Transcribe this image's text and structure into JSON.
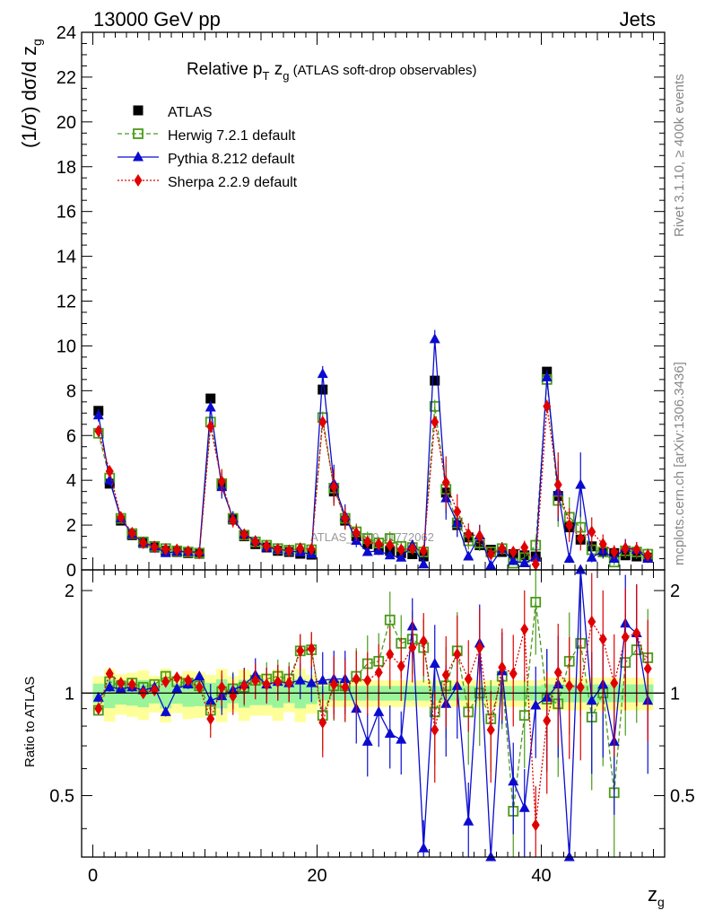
{
  "header": {
    "left": "13000 GeV pp",
    "right": "Jets"
  },
  "side_labels": {
    "rivet": "Rivet 3.1.10, ≥ 400k events",
    "mcplots": "mcplots.cern.ch [arXiv:1306.3436]"
  },
  "watermark": "ATLAS_2019_I1772062",
  "chart_data": {
    "type": "scatter",
    "title": "Relative pT zg (ATLAS soft-drop observables)",
    "title_parts": {
      "a": "Relative p",
      "sub1": "T",
      "b": " z",
      "sub2": "g",
      "c": " (ATLAS soft-drop observables)"
    },
    "xlabel": "zg",
    "xlabel_parts": {
      "main": "z",
      "sub": "g"
    },
    "ylabel": "(1/σ) dσ/d zg",
    "ylabel_parts": {
      "main": "(1/σ) dσ/d z",
      "sub": "g"
    },
    "ratio_ylabel": "Ratio to ATLAS",
    "xlim": [
      -1,
      51
    ],
    "ylim": [
      0,
      24
    ],
    "ratio_ylim": [
      0.33,
      2.3
    ],
    "xticks": [
      "0",
      "20",
      "40"
    ],
    "yticks": [
      "0",
      "2",
      "4",
      "6",
      "8",
      "10",
      "12",
      "14",
      "16",
      "18",
      "20",
      "22",
      "24"
    ],
    "ratio_yticks": [
      "0.5",
      "1",
      "2"
    ],
    "x": [
      0.5,
      1.5,
      2.5,
      3.5,
      4.5,
      5.5,
      6.5,
      7.5,
      8.5,
      9.5,
      10.5,
      11.5,
      12.5,
      13.5,
      14.5,
      15.5,
      16.5,
      17.5,
      18.5,
      19.5,
      20.5,
      21.5,
      22.5,
      23.5,
      24.5,
      25.5,
      26.5,
      27.5,
      28.5,
      29.5,
      30.5,
      31.5,
      32.5,
      33.5,
      34.5,
      35.5,
      36.5,
      37.5,
      38.5,
      39.5,
      40.5,
      41.5,
      42.5,
      43.5,
      44.5,
      45.5,
      46.5,
      47.5,
      48.5,
      49.5
    ],
    "legend": [
      "ATLAS",
      "Herwig 7.2.1 default",
      "Pythia 8.212 default",
      "Sherpa 2.2.9 default"
    ],
    "series": [
      {
        "name": "ATLAS",
        "color": "#000000",
        "marker": "square-filled",
        "values": [
          7.1,
          3.85,
          2.2,
          1.55,
          1.2,
          1.0,
          0.85,
          0.8,
          0.75,
          0.72,
          7.65,
          3.8,
          2.25,
          1.5,
          1.15,
          1.0,
          0.85,
          0.8,
          0.72,
          0.68,
          8.05,
          3.5,
          2.2,
          1.5,
          1.15,
          1.0,
          0.85,
          0.75,
          0.7,
          0.6,
          8.45,
          3.45,
          2.0,
          1.45,
          1.1,
          0.9,
          0.8,
          0.7,
          0.65,
          0.6,
          8.85,
          3.3,
          1.9,
          1.35,
          1.05,
          0.8,
          0.75,
          0.65,
          0.6,
          0.55
        ]
      },
      {
        "name": "Herwig 7.2.1 default",
        "color": "#4a9a1a",
        "marker": "square-open",
        "linestyle": "dashed",
        "values": [
          6.1,
          4.1,
          2.3,
          1.62,
          1.25,
          1.05,
          0.95,
          0.85,
          0.8,
          0.75,
          6.6,
          3.85,
          2.3,
          1.55,
          1.25,
          1.1,
          0.95,
          0.88,
          0.95,
          0.9,
          6.8,
          3.65,
          2.3,
          1.7,
          1.4,
          1.2,
          1.4,
          1.05,
          1.0,
          0.8,
          7.3,
          3.6,
          2.1,
          1.3,
          1.2,
          0.8,
          0.95,
          0.3,
          0.55,
          1.1,
          8.5,
          3.1,
          2.35,
          1.9,
          0.9,
          0.8,
          0.35,
          0.85,
          0.8,
          0.7
        ]
      },
      {
        "name": "Pythia 8.212 default",
        "color": "#0b0bd0",
        "marker": "triangle-filled",
        "linestyle": "solid",
        "values": [
          6.9,
          4.0,
          2.3,
          1.6,
          1.22,
          1.05,
          0.75,
          0.82,
          0.8,
          0.8,
          7.25,
          3.7,
          2.3,
          1.6,
          1.3,
          1.0,
          0.92,
          0.85,
          0.78,
          0.7,
          8.75,
          3.85,
          2.4,
          1.3,
          0.8,
          0.85,
          0.65,
          0.55,
          1.1,
          0.25,
          10.3,
          3.2,
          2.1,
          0.6,
          1.55,
          0.2,
          0.95,
          0.4,
          0.3,
          0.55,
          8.6,
          3.5,
          0.5,
          3.8,
          0.55,
          0.85,
          0.5,
          1.0,
          0.9,
          0.5
        ]
      },
      {
        "name": "Sherpa 2.2.9 default",
        "color": "#e00000",
        "marker": "diamond-filled",
        "linestyle": "dotted",
        "values": [
          6.2,
          4.4,
          2.35,
          1.65,
          1.2,
          1.02,
          0.92,
          0.9,
          0.82,
          0.75,
          6.4,
          3.95,
          2.2,
          1.58,
          1.25,
          1.06,
          0.92,
          0.86,
          0.96,
          0.92,
          6.6,
          3.7,
          2.3,
          1.65,
          1.25,
          1.15,
          1.1,
          0.9,
          0.95,
          0.85,
          6.6,
          3.9,
          2.6,
          1.6,
          1.5,
          0.7,
          0.95,
          0.8,
          1.0,
          0.25,
          7.3,
          3.8,
          2.0,
          1.4,
          1.7,
          1.15,
          0.8,
          0.95,
          0.9,
          0.65
        ]
      }
    ],
    "ratio_series": [
      {
        "name": "Herwig 7.2.1 default",
        "values": [
          0.89,
          1.08,
          1.05,
          1.07,
          1.04,
          1.06,
          1.12,
          1.08,
          1.07,
          1.05,
          0.89,
          1.01,
          1.03,
          1.04,
          1.09,
          1.1,
          1.12,
          1.1,
          1.33,
          1.34,
          0.86,
          1.05,
          1.05,
          1.12,
          1.22,
          1.24,
          1.64,
          1.4,
          1.44,
          1.36,
          0.88,
          1.05,
          1.33,
          0.88,
          1.0,
          0.84,
          1.12,
          0.45,
          0.86,
          1.85,
          0.96,
          0.93,
          1.24,
          1.4,
          0.85,
          1.0,
          0.51,
          1.23,
          1.34,
          1.27
        ]
      },
      {
        "name": "Pythia 8.212 default",
        "values": [
          0.97,
          1.04,
          1.03,
          1.04,
          1.02,
          1.04,
          0.88,
          1.03,
          1.06,
          1.12,
          0.95,
          0.98,
          1.02,
          1.06,
          1.13,
          1.06,
          1.08,
          1.07,
          1.09,
          1.07,
          1.09,
          1.1,
          1.1,
          0.9,
          0.72,
          0.88,
          0.76,
          0.73,
          1.57,
          0.35,
          1.22,
          0.93,
          1.05,
          0.42,
          1.4,
          0.25,
          1.16,
          0.55,
          0.46,
          0.92,
          0.97,
          1.06,
          0.26,
          2.3,
          0.95,
          1.06,
          0.72,
          1.6,
          1.5,
          0.95
        ]
      },
      {
        "name": "Sherpa 2.2.9 default",
        "values": [
          0.9,
          1.14,
          1.07,
          1.06,
          1.0,
          1.02,
          1.08,
          1.11,
          1.09,
          1.04,
          0.84,
          1.04,
          0.98,
          1.05,
          1.09,
          1.06,
          1.08,
          1.07,
          1.33,
          1.35,
          0.82,
          1.06,
          1.04,
          1.1,
          1.09,
          1.15,
          1.3,
          1.2,
          1.36,
          1.42,
          0.78,
          1.13,
          1.3,
          1.1,
          1.36,
          0.78,
          1.19,
          1.14,
          1.54,
          0.41,
          0.83,
          1.15,
          1.05,
          1.04,
          1.62,
          1.44,
          1.07,
          1.46,
          1.5,
          1.18
        ]
      }
    ]
  }
}
